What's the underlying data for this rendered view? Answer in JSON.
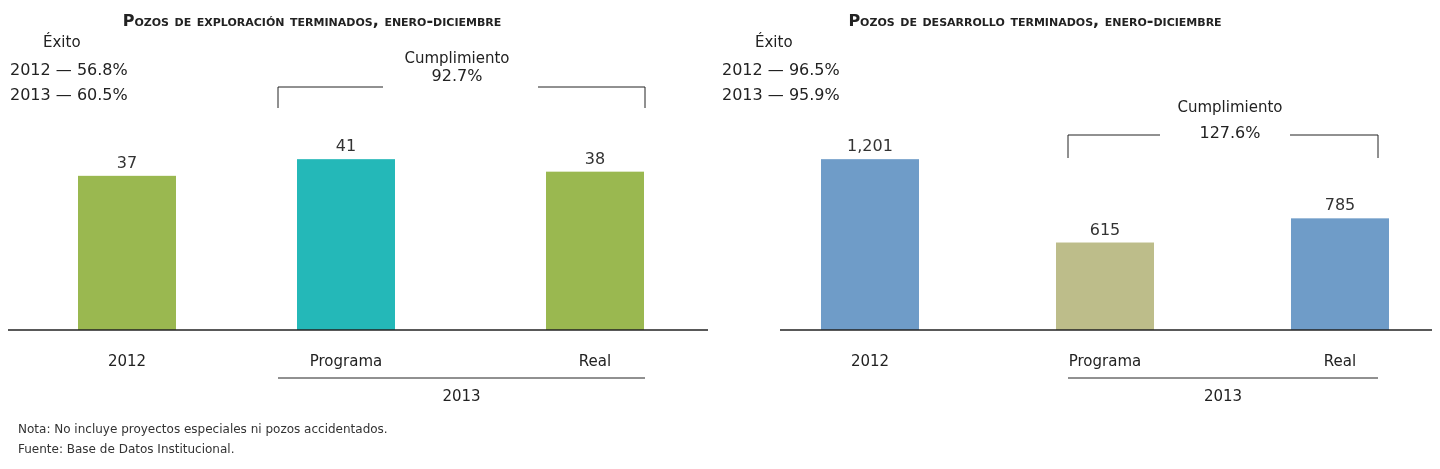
{
  "chart_data": [
    {
      "type": "bar",
      "title": "Pozos de exploración terminados, enero-diciembre",
      "categories": [
        "2012",
        "Programa",
        "Real"
      ],
      "values": [
        37,
        41,
        38
      ],
      "colors": [
        "#9ab850",
        "#24b8b8",
        "#9ab850"
      ],
      "data_labels": true,
      "annotations": [
        "Éxito",
        "2012 — 56.8%",
        "2013 — 60.5%",
        "Cumplimiento",
        "92.7%",
        "2013",
        "Nota: No incluye proyectos especiales  ni pozos accidentados.",
        "Fuente: Base de Datos Institucional."
      ]
    },
    {
      "type": "bar",
      "title": "Pozos de desarrollo terminados, enero-diciembre",
      "categories": [
        "2012",
        "Programa",
        "Real"
      ],
      "values": [
        1201,
        615,
        785
      ],
      "colors": [
        "#6f9cc8",
        "#bdbd8a",
        "#6f9cc8"
      ],
      "value_labels": [
        "1,201",
        "615",
        "785"
      ],
      "annotations": [
        "Éxito",
        "2012 — 96.5%",
        "2013 — 95.9%",
        "Cumplimiento",
        "127.6%",
        "2013"
      ]
    }
  ]
}
